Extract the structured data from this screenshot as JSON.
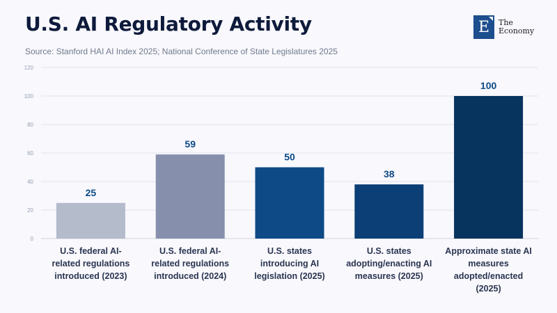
{
  "header": {
    "title": "U.S. AI Regulatory Activity",
    "source": "Source: Stanford HAI AI Index 2025; National Conference of State Legislatures 2025"
  },
  "logo": {
    "letter": "E",
    "line1": "The",
    "line2": "Economy",
    "color": "#1d4e8e"
  },
  "chart_data": {
    "type": "bar",
    "title": "U.S. AI Regulatory Activity",
    "xlabel": "",
    "ylabel": "",
    "ylim": [
      0,
      120
    ],
    "yticks": [
      0,
      20,
      40,
      60,
      80,
      100,
      120
    ],
    "grid": true,
    "legend": "none",
    "categories": [
      "U.S. federal AI-related regulations introduced (2023)",
      "U.S. federal AI-related regulations introduced (2024)",
      "U.S. states introducing AI legislation (2025)",
      "U.S. states adopting/enacting AI measures (2025)",
      "Approximate state AI measures adopted/enacted (2025)"
    ],
    "category_lines": [
      [
        "U.S. federal AI-",
        "related regulations",
        "introduced (2023)"
      ],
      [
        "U.S. federal AI-",
        "related regulations",
        "introduced (2024)"
      ],
      [
        "U.S. states",
        "introducing AI",
        "legislation (2025)"
      ],
      [
        "U.S. states",
        "adopting/enacting AI",
        "measures (2025)"
      ],
      [
        "Approximate state AI",
        "measures",
        "adopted/enacted",
        "(2025)"
      ]
    ],
    "values": [
      25,
      59,
      50,
      38,
      100
    ],
    "value_labels": [
      "25",
      "59",
      "50",
      "38",
      "100"
    ],
    "colors": [
      "#b4bbcb",
      "#8690ad",
      "#0d4a86",
      "#0c3f76",
      "#07335f"
    ],
    "value_label_color": "#0d4a86"
  }
}
